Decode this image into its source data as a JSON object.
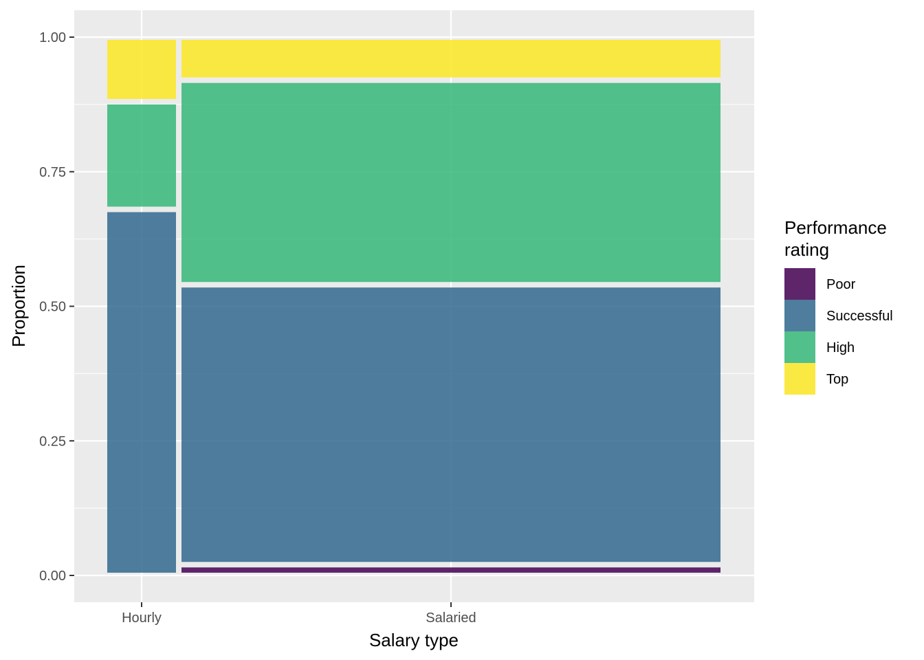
{
  "chart_data": {
    "type": "mosaic",
    "xlabel": "Salary type",
    "ylabel": "Proportion",
    "categories": [
      "Hourly",
      "Salaried"
    ],
    "category_widths": [
      0.12,
      0.88
    ],
    "ylim": [
      0,
      1
    ],
    "yticks": [
      "0.00",
      "0.25",
      "0.50",
      "0.75",
      "1.00"
    ],
    "grid": true,
    "legend": {
      "title_lines": [
        "Performance",
        "rating"
      ],
      "position": "right"
    },
    "series": [
      {
        "name": "Poor",
        "color": "#440154",
        "values": [
          0.0,
          0.02
        ]
      },
      {
        "name": "Successful",
        "color": "#31688E",
        "values": [
          0.68,
          0.52
        ]
      },
      {
        "name": "High",
        "color": "#35B779",
        "values": [
          0.2,
          0.38
        ]
      },
      {
        "name": "Top",
        "color": "#FDE725",
        "values": [
          0.12,
          0.08
        ]
      }
    ]
  }
}
